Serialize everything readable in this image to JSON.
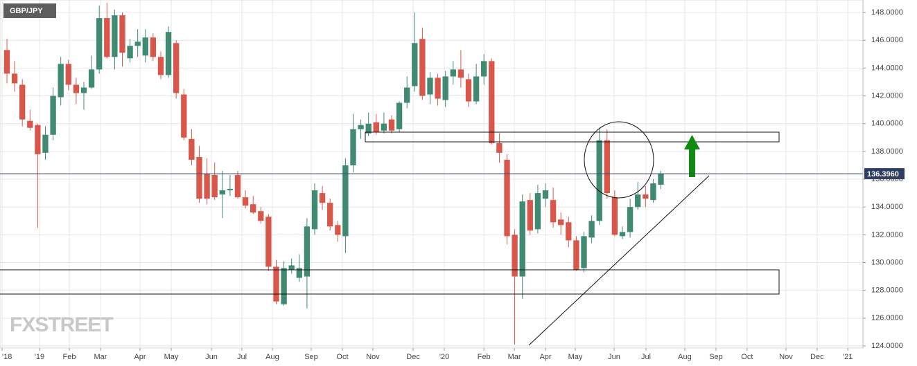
{
  "chart_data": {
    "type": "candlestick",
    "title": "GBP/JPY",
    "watermark": "FXSTREET",
    "x": [
      0,
      1,
      2,
      3,
      4,
      5,
      6,
      7,
      8,
      9,
      10,
      11,
      12,
      13,
      14,
      15,
      16,
      17,
      18,
      19,
      20,
      21,
      22,
      23,
      24,
      25,
      26,
      27,
      28,
      29,
      30,
      31,
      32,
      33,
      34,
      35,
      36,
      37,
      38,
      39,
      40,
      41,
      42,
      43,
      44,
      45,
      46,
      47,
      48,
      49,
      50,
      51,
      52,
      53,
      54,
      55,
      56,
      57,
      58,
      59,
      60,
      61,
      62,
      63,
      64,
      65,
      66,
      67,
      68,
      69,
      70,
      71,
      72,
      73,
      74,
      75,
      76,
      77,
      78,
      79,
      80,
      81,
      82,
      83,
      84,
      85
    ],
    "open": [
      145.3,
      143.6,
      142.8,
      140.2,
      139.9,
      137.9,
      139.2,
      141.9,
      144.3,
      142.8,
      142.2,
      142.6,
      143.9,
      147.6,
      144.8,
      147.8,
      144.7,
      145.6,
      144.9,
      146.2,
      144.8,
      143.5,
      145.8,
      142.1,
      138.9,
      137.6,
      136.4,
      136.3,
      134.9,
      135.2,
      136.3,
      134.7,
      134.2,
      133.7,
      133.3,
      129.7,
      127.0,
      129.5,
      128.9,
      129.0,
      132.4,
      135.0,
      134.3,
      132.7,
      131.9,
      137.0,
      139.6,
      139.3,
      140.1,
      139.5,
      140.3,
      139.6,
      141.5,
      142.7,
      146.1,
      142.1,
      143.3,
      141.7,
      143.4,
      143.9,
      143.2,
      141.6,
      143.4,
      144.5,
      138.6,
      137.4,
      132.0,
      129.0,
      134.5,
      132.4,
      134.6,
      134.5,
      133.1,
      132.9,
      131.6,
      129.6,
      131.8,
      133.0,
      138.8,
      134.7,
      131.9,
      132.2,
      134.0,
      134.9,
      134.5,
      135.6
    ],
    "high": [
      146.1,
      144.5,
      143.2,
      141.0,
      140.0,
      139.8,
      142.6,
      144.8,
      144.6,
      143.3,
      143.0,
      144.9,
      148.5,
      148.7,
      148.2,
      148.0,
      146.1,
      146.8,
      146.8,
      146.5,
      145.2,
      147.0,
      146.0,
      142.5,
      139.6,
      138.4,
      137.5,
      137.2,
      136.6,
      136.3,
      136.6,
      135.2,
      134.8,
      134.0,
      133.5,
      130.2,
      130.1,
      130.3,
      130.6,
      133.2,
      135.7,
      135.5,
      134.6,
      133.0,
      137.5,
      140.7,
      140.3,
      140.8,
      140.7,
      140.8,
      140.6,
      141.6,
      143.4,
      148.0,
      146.9,
      143.7,
      143.6,
      143.8,
      144.5,
      145.3,
      143.6,
      144.3,
      145.0,
      144.7,
      139.3,
      137.8,
      132.4,
      134.9,
      135.0,
      135.6,
      135.7,
      135.4,
      133.6,
      133.3,
      131.9,
      132.2,
      133.4,
      139.7,
      139.6,
      135.2,
      132.6,
      134.6,
      135.8,
      135.5,
      136.0,
      136.6
    ],
    "low": [
      142.9,
      142.3,
      139.8,
      139.5,
      132.5,
      137.4,
      138.8,
      141.3,
      142.4,
      141.4,
      141.0,
      142.5,
      143.6,
      144.7,
      143.9,
      144.1,
      144.4,
      144.8,
      144.4,
      144.5,
      143.2,
      143.3,
      141.8,
      138.8,
      137.0,
      134.3,
      134.2,
      134.5,
      133.2,
      134.8,
      134.6,
      133.9,
      133.5,
      132.8,
      129.4,
      127.0,
      126.9,
      129.2,
      128.6,
      126.7,
      132.0,
      133.8,
      132.3,
      131.5,
      130.7,
      136.5,
      138.9,
      139.1,
      139.2,
      139.3,
      139.3,
      139.4,
      141.1,
      142.3,
      141.7,
      141.4,
      141.3,
      141.2,
      142.8,
      142.6,
      141.2,
      141.4,
      142.8,
      138.5,
      137.2,
      131.3,
      124.1,
      127.4,
      132.0,
      132.1,
      134.0,
      132.5,
      132.0,
      131.1,
      129.4,
      129.3,
      131.4,
      132.7,
      134.6,
      131.9,
      131.7,
      131.8,
      133.8,
      134.0,
      134.3,
      135.3
    ],
    "close": [
      143.6,
      142.9,
      140.3,
      139.7,
      137.8,
      139.2,
      142.0,
      144.3,
      142.8,
      142.2,
      142.6,
      143.9,
      147.6,
      144.8,
      147.8,
      145.1,
      145.6,
      145.9,
      146.2,
      144.8,
      143.5,
      146.6,
      142.2,
      139.0,
      137.4,
      134.6,
      134.6,
      134.7,
      135.2,
      135.3,
      134.7,
      134.1,
      133.6,
      133.0,
      129.7,
      127.2,
      129.6,
      129.8,
      129.6,
      132.6,
      135.2,
      134.3,
      132.6,
      132.0,
      137.0,
      139.6,
      139.9,
      140.0,
      139.4,
      140.0,
      139.5,
      141.5,
      142.6,
      145.8,
      142.0,
      143.3,
      141.8,
      143.4,
      143.9,
      143.3,
      141.6,
      143.4,
      144.5,
      138.6,
      137.9,
      131.9,
      129.0,
      134.4,
      132.3,
      135.0,
      135.2,
      132.9,
      132.7,
      131.6,
      129.5,
      131.9,
      133.0,
      138.8,
      135.0,
      132.0,
      132.2,
      134.0,
      134.9,
      134.6,
      135.7,
      136.4
    ],
    "up_color": "#3f8a70",
    "down_color": "#d9574a",
    "last_price": {
      "value": 136.396,
      "label": "136.3960"
    },
    "xlim": [
      -0.9,
      111.26
    ],
    "ylim": [
      123.85,
      148.9
    ],
    "xticks": [
      {
        "value": -0.63,
        "label": "'18"
      },
      {
        "value": 4.23,
        "label": "'19"
      },
      {
        "value": 8.11,
        "label": "Feb"
      },
      {
        "value": 12.16,
        "label": "Mar"
      },
      {
        "value": 17.3,
        "label": "Apr"
      },
      {
        "value": 21.35,
        "label": "May"
      },
      {
        "value": 26.58,
        "label": "Jun"
      },
      {
        "value": 30.54,
        "label": "Jul"
      },
      {
        "value": 34.5,
        "label": "Aug"
      },
      {
        "value": 39.55,
        "label": "Sep"
      },
      {
        "value": 43.6,
        "label": "Oct"
      },
      {
        "value": 47.57,
        "label": "Nov"
      },
      {
        "value": 52.8,
        "label": "Dec"
      },
      {
        "value": 56.85,
        "label": "'20"
      },
      {
        "value": 62,
        "label": "Feb"
      },
      {
        "value": 65.95,
        "label": "Mar"
      },
      {
        "value": 70,
        "label": "Apr"
      },
      {
        "value": 73.87,
        "label": "May"
      },
      {
        "value": 78.92,
        "label": "Jun"
      },
      {
        "value": 83.06,
        "label": "Jul"
      },
      {
        "value": 88.1,
        "label": "Aug"
      },
      {
        "value": 92.16,
        "label": "Sep"
      },
      {
        "value": 96.2,
        "label": "Oct"
      },
      {
        "value": 101.26,
        "label": "Nov"
      },
      {
        "value": 105.3,
        "label": "Dec"
      },
      {
        "value": 109.3,
        "label": "'21"
      }
    ],
    "yticks": [
      {
        "value": 124,
        "label": "124.0000"
      },
      {
        "value": 126,
        "label": "126.0000"
      },
      {
        "value": 128,
        "label": "128.0000"
      },
      {
        "value": 130,
        "label": "130.0000"
      },
      {
        "value": 132,
        "label": "132.0000"
      },
      {
        "value": 134,
        "label": "134.0000"
      },
      {
        "value": 136,
        "label": "136.0000"
      },
      {
        "value": 138,
        "label": "138.0000"
      },
      {
        "value": 140,
        "label": "140.0000"
      },
      {
        "value": 142,
        "label": "142.0000"
      },
      {
        "value": 144,
        "label": "144.0000"
      },
      {
        "value": 146,
        "label": "146.0000"
      },
      {
        "value": 148,
        "label": "148.0000"
      }
    ],
    "grid": true
  }
}
